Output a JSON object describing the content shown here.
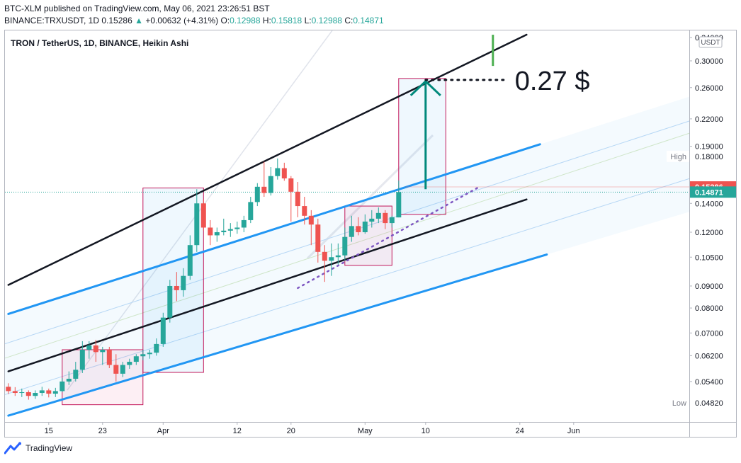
{
  "header": {
    "line1": "BTC-XLM published on TradingView.com, May 06, 2021 23:26:51 BST",
    "symbol": "BINANCE:TRXUSDT, 1D",
    "last": "0.15286",
    "change_arrow": "▲",
    "change": "+0.00632 (+4.31%)",
    "o_label": "O:",
    "o": "0.12988",
    "h_label": "H:",
    "h": "0.15818",
    "l_label": "L:",
    "l": "0.12988",
    "c_label": "C:",
    "c": "0.14871"
  },
  "legend_title": "TRON / TetherUS, 1D, BINANCE, Heikin Ashi",
  "annotation_text": "0.27 $",
  "currency_label": "USDT",
  "footer": {
    "brand": "TradingView"
  },
  "colors": {
    "up": "#26a69a",
    "down": "#ef5350",
    "channel_blue": "#2196f3",
    "box_border": "#c2185b",
    "arrow": "#00897b",
    "dotted": "#7e57c2",
    "black_line": "#131722"
  },
  "chart_data": {
    "type": "candlestick",
    "title": "TRON / TetherUS, 1D, BINANCE, Heikin Ashi",
    "y_scale": "log",
    "ylim": [
      0.0435,
      0.353
    ],
    "price_ticks": [
      "0.34000",
      "0.30000",
      "0.26000",
      "0.22000",
      "0.19000",
      "0.18000",
      "0.14000",
      "0.12000",
      "0.10500",
      "0.09000",
      "0.08000",
      "0.07000",
      "0.06200",
      "0.05400",
      "0.04820"
    ],
    "x_ticks": [
      "15",
      "23",
      "Apr",
      "12",
      "20",
      "May",
      "10",
      "24",
      "Jun"
    ],
    "x_tick_dates": [
      "2021-03-15",
      "2021-03-23",
      "2021-04-01",
      "2021-04-12",
      "2021-04-20",
      "2021-05-01",
      "2021-05-10",
      "2021-05-24",
      "2021-06-01"
    ],
    "price_labels": [
      {
        "text": "0.15286",
        "value": 0.15286,
        "style": "last"
      },
      {
        "text": "0.14871",
        "value": 0.14871,
        "style": "close"
      },
      {
        "prefix": "High",
        "text": "0.18000",
        "value": 0.18,
        "style": "plain"
      },
      {
        "prefix": "Low",
        "text": "0.04820",
        "value": 0.0482,
        "style": "plain"
      }
    ],
    "candles": [
      {
        "date": "2021-03-09",
        "o": 0.0525,
        "h": 0.0535,
        "l": 0.0505,
        "c": 0.0513
      },
      {
        "date": "2021-03-10",
        "o": 0.0513,
        "h": 0.0524,
        "l": 0.05,
        "c": 0.0508
      },
      {
        "date": "2021-03-11",
        "o": 0.0508,
        "h": 0.052,
        "l": 0.0497,
        "c": 0.051
      },
      {
        "date": "2021-03-12",
        "o": 0.051,
        "h": 0.0515,
        "l": 0.049,
        "c": 0.05
      },
      {
        "date": "2021-03-13",
        "o": 0.05,
        "h": 0.0515,
        "l": 0.0492,
        "c": 0.0508
      },
      {
        "date": "2021-03-14",
        "o": 0.0508,
        "h": 0.0525,
        "l": 0.05,
        "c": 0.0515
      },
      {
        "date": "2021-03-15",
        "o": 0.0515,
        "h": 0.052,
        "l": 0.0496,
        "c": 0.0506
      },
      {
        "date": "2021-03-16",
        "o": 0.0506,
        "h": 0.0522,
        "l": 0.0497,
        "c": 0.0513
      },
      {
        "date": "2021-03-17",
        "o": 0.0513,
        "h": 0.055,
        "l": 0.051,
        "c": 0.054
      },
      {
        "date": "2021-03-18",
        "o": 0.054,
        "h": 0.057,
        "l": 0.053,
        "c": 0.0548
      },
      {
        "date": "2021-03-19",
        "o": 0.0548,
        "h": 0.06,
        "l": 0.054,
        "c": 0.0575
      },
      {
        "date": "2021-03-20",
        "o": 0.0575,
        "h": 0.067,
        "l": 0.0565,
        "c": 0.064
      },
      {
        "date": "2021-03-21",
        "o": 0.064,
        "h": 0.067,
        "l": 0.061,
        "c": 0.0655
      },
      {
        "date": "2021-03-22",
        "o": 0.0655,
        "h": 0.0675,
        "l": 0.06,
        "c": 0.0632
      },
      {
        "date": "2021-03-23",
        "o": 0.0632,
        "h": 0.065,
        "l": 0.059,
        "c": 0.064
      },
      {
        "date": "2021-03-24",
        "o": 0.064,
        "h": 0.065,
        "l": 0.058,
        "c": 0.059
      },
      {
        "date": "2021-03-25",
        "o": 0.059,
        "h": 0.0625,
        "l": 0.054,
        "c": 0.0563
      },
      {
        "date": "2021-03-26",
        "o": 0.0563,
        "h": 0.06,
        "l": 0.0553,
        "c": 0.059
      },
      {
        "date": "2021-03-27",
        "o": 0.059,
        "h": 0.061,
        "l": 0.0578,
        "c": 0.06
      },
      {
        "date": "2021-03-28",
        "o": 0.06,
        "h": 0.0625,
        "l": 0.059,
        "c": 0.0618
      },
      {
        "date": "2021-03-29",
        "o": 0.0618,
        "h": 0.064,
        "l": 0.0605,
        "c": 0.0625
      },
      {
        "date": "2021-03-30",
        "o": 0.0625,
        "h": 0.064,
        "l": 0.061,
        "c": 0.063
      },
      {
        "date": "2021-03-31",
        "o": 0.063,
        "h": 0.068,
        "l": 0.062,
        "c": 0.066
      },
      {
        "date": "2021-04-01",
        "o": 0.066,
        "h": 0.078,
        "l": 0.065,
        "c": 0.076
      },
      {
        "date": "2021-04-02",
        "o": 0.076,
        "h": 0.093,
        "l": 0.074,
        "c": 0.09
      },
      {
        "date": "2021-04-03",
        "o": 0.09,
        "h": 0.097,
        "l": 0.083,
        "c": 0.088
      },
      {
        "date": "2021-04-04",
        "o": 0.088,
        "h": 0.099,
        "l": 0.085,
        "c": 0.095
      },
      {
        "date": "2021-04-05",
        "o": 0.095,
        "h": 0.118,
        "l": 0.093,
        "c": 0.112
      },
      {
        "date": "2021-04-06",
        "o": 0.112,
        "h": 0.151,
        "l": 0.108,
        "c": 0.14
      },
      {
        "date": "2021-04-07",
        "o": 0.14,
        "h": 0.143,
        "l": 0.121,
        "c": 0.123
      },
      {
        "date": "2021-04-08",
        "o": 0.123,
        "h": 0.128,
        "l": 0.112,
        "c": 0.118
      },
      {
        "date": "2021-04-09",
        "o": 0.118,
        "h": 0.123,
        "l": 0.114,
        "c": 0.12
      },
      {
        "date": "2021-04-10",
        "o": 0.12,
        "h": 0.129,
        "l": 0.118,
        "c": 0.121
      },
      {
        "date": "2021-04-11",
        "o": 0.121,
        "h": 0.126,
        "l": 0.117,
        "c": 0.122
      },
      {
        "date": "2021-04-12",
        "o": 0.122,
        "h": 0.127,
        "l": 0.119,
        "c": 0.123
      },
      {
        "date": "2021-04-13",
        "o": 0.123,
        "h": 0.131,
        "l": 0.12,
        "c": 0.128
      },
      {
        "date": "2021-04-14",
        "o": 0.128,
        "h": 0.145,
        "l": 0.126,
        "c": 0.141
      },
      {
        "date": "2021-04-15",
        "o": 0.141,
        "h": 0.156,
        "l": 0.138,
        "c": 0.153
      },
      {
        "date": "2021-04-16",
        "o": 0.153,
        "h": 0.175,
        "l": 0.145,
        "c": 0.148
      },
      {
        "date": "2021-04-17",
        "o": 0.148,
        "h": 0.17,
        "l": 0.146,
        "c": 0.162
      },
      {
        "date": "2021-04-18",
        "o": 0.162,
        "h": 0.178,
        "l": 0.159,
        "c": 0.169
      },
      {
        "date": "2021-04-19",
        "o": 0.169,
        "h": 0.174,
        "l": 0.158,
        "c": 0.16
      },
      {
        "date": "2021-04-20",
        "o": 0.16,
        "h": 0.162,
        "l": 0.127,
        "c": 0.149
      },
      {
        "date": "2021-04-21",
        "o": 0.149,
        "h": 0.157,
        "l": 0.13,
        "c": 0.138
      },
      {
        "date": "2021-04-22",
        "o": 0.138,
        "h": 0.145,
        "l": 0.125,
        "c": 0.131
      },
      {
        "date": "2021-04-23",
        "o": 0.131,
        "h": 0.135,
        "l": 0.112,
        "c": 0.125
      },
      {
        "date": "2021-04-24",
        "o": 0.125,
        "h": 0.129,
        "l": 0.102,
        "c": 0.108
      },
      {
        "date": "2021-04-25",
        "o": 0.108,
        "h": 0.112,
        "l": 0.092,
        "c": 0.103
      },
      {
        "date": "2021-04-26",
        "o": 0.103,
        "h": 0.113,
        "l": 0.095,
        "c": 0.105
      },
      {
        "date": "2021-04-27",
        "o": 0.105,
        "h": 0.113,
        "l": 0.101,
        "c": 0.106
      },
      {
        "date": "2021-04-28",
        "o": 0.106,
        "h": 0.123,
        "l": 0.103,
        "c": 0.117
      },
      {
        "date": "2021-04-29",
        "o": 0.117,
        "h": 0.131,
        "l": 0.114,
        "c": 0.124
      },
      {
        "date": "2021-04-30",
        "o": 0.124,
        "h": 0.13,
        "l": 0.118,
        "c": 0.12
      },
      {
        "date": "2021-05-01",
        "o": 0.12,
        "h": 0.132,
        "l": 0.119,
        "c": 0.127
      },
      {
        "date": "2021-05-02",
        "o": 0.127,
        "h": 0.135,
        "l": 0.123,
        "c": 0.129
      },
      {
        "date": "2021-05-03",
        "o": 0.129,
        "h": 0.137,
        "l": 0.126,
        "c": 0.133
      },
      {
        "date": "2021-05-04",
        "o": 0.133,
        "h": 0.135,
        "l": 0.122,
        "c": 0.126
      },
      {
        "date": "2021-05-05",
        "o": 0.126,
        "h": 0.131,
        "l": 0.123,
        "c": 0.13
      },
      {
        "date": "2021-05-06",
        "o": 0.12988,
        "h": 0.15818,
        "l": 0.12988,
        "c": 0.14871
      }
    ],
    "drawings": {
      "upper_black_line": {
        "from": {
          "date": "2021-03-09",
          "price": 0.0905
        },
        "to": {
          "date": "2021-05-25",
          "price": 0.345
        }
      },
      "lower_black_line": {
        "from": {
          "date": "2021-03-09",
          "price": 0.057
        },
        "to": {
          "date": "2021-05-25",
          "price": 0.143
        }
      },
      "upper_blue_line": {
        "from": {
          "date": "2021-03-09",
          "price": 0.0775
        },
        "to": {
          "date": "2021-05-27",
          "price": 0.192
        }
      },
      "lower_blue_line": {
        "from": {
          "date": "2021-03-09",
          "price": 0.045
        },
        "to": {
          "date": "2021-05-28",
          "price": 0.1065
        }
      },
      "dotted_trendline": {
        "from": {
          "date": "2021-04-21",
          "price": 0.089
        },
        "to": {
          "date": "2021-05-18",
          "price": 0.153
        }
      },
      "target": {
        "date": "2021-05-10",
        "from_price": 0.151,
        "to_price": 0.271
      },
      "target_leader": {
        "from": {
          "date": "2021-05-10",
          "price": 0.271
        },
        "to": {
          "date": "2021-05-22",
          "price": 0.271
        }
      },
      "boxes": [
        {
          "from": "2021-03-17",
          "to": "2021-03-29",
          "low": 0.0477,
          "high": 0.064
        },
        {
          "from": "2021-03-29",
          "to": "2021-04-07",
          "low": 0.0567,
          "high": 0.152
        },
        {
          "from": "2021-04-28",
          "to": "2021-05-05",
          "low": 0.1005,
          "high": 0.138
        },
        {
          "from": "2021-05-06",
          "to": "2021-05-13",
          "low": 0.132,
          "high": 0.273
        }
      ],
      "green_tick": {
        "date": "2021-05-20",
        "low": 0.292,
        "high": 0.345
      }
    }
  }
}
